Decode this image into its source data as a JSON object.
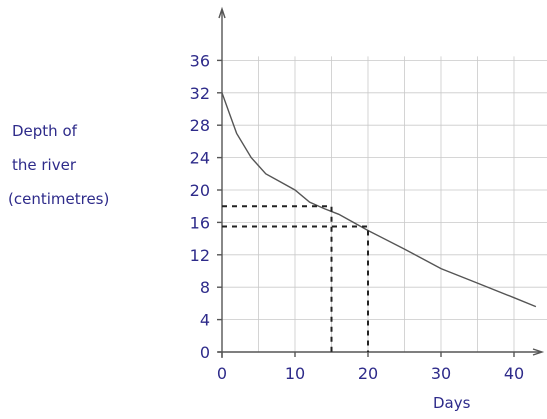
{
  "chart_data": {
    "type": "line",
    "xlabel": "Days",
    "ylabel": [
      "Depth of",
      "the river",
      "(centimetres)"
    ],
    "xlim": [
      0,
      45
    ],
    "ylim": [
      0,
      36
    ],
    "xticks": [
      0,
      10,
      20,
      30,
      40
    ],
    "yticks": [
      0,
      4,
      8,
      12,
      16,
      20,
      24,
      28,
      32,
      36
    ],
    "grid": true,
    "series": [
      {
        "x": [
          0,
          1,
          2,
          4,
          6,
          8,
          10,
          12,
          14,
          16,
          18,
          20,
          25,
          30,
          35,
          40,
          43
        ],
        "y": [
          32,
          29.5,
          27,
          24,
          22,
          21,
          20,
          18.5,
          17.7,
          17,
          16,
          15,
          12.7,
          10.3,
          8.5,
          6.7,
          5.6
        ]
      }
    ],
    "annotations": [
      {
        "type": "dashed-guide",
        "x": 15,
        "y": 18
      },
      {
        "type": "dashed-guide",
        "x": 20,
        "y": 15.5
      }
    ]
  }
}
